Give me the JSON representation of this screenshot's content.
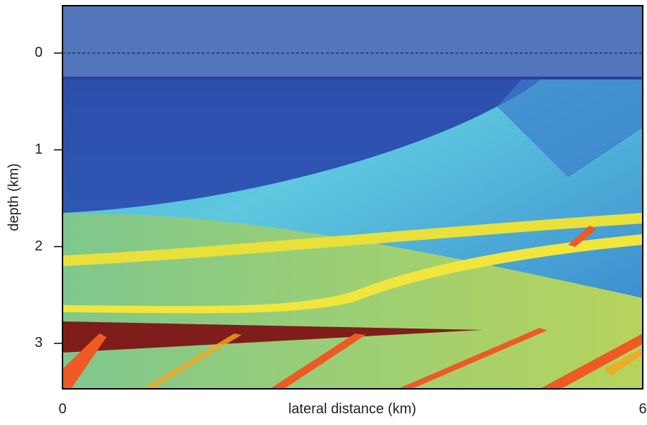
{
  "chart_data": {
    "type": "heatmap-image",
    "xlabel": "lateral distance (km)",
    "ylabel": "depth (km)",
    "xlim": [
      0,
      6
    ],
    "xticks": [
      0,
      6
    ],
    "ylim": [
      3.47,
      -0.49
    ],
    "yticks": [
      0,
      1,
      2,
      3
    ],
    "hline": 0
  }
}
